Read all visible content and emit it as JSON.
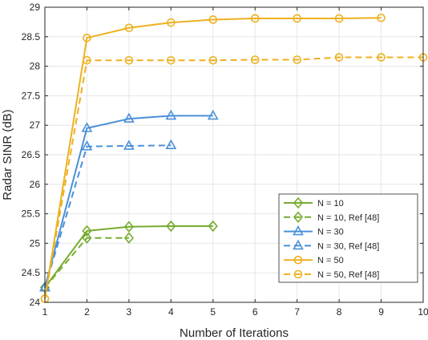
{
  "chart_data": {
    "type": "line",
    "title": "",
    "xlabel": "Number of Iterations",
    "ylabel": "Radar SINR (dB)",
    "xlim": [
      1,
      10
    ],
    "ylim": [
      24,
      29
    ],
    "x_ticks": [
      "1",
      "2",
      "3",
      "4",
      "5",
      "6",
      "7",
      "8",
      "9",
      "10"
    ],
    "y_ticks": [
      "24",
      "24.5",
      "25",
      "25.5",
      "26",
      "26.5",
      "27",
      "27.5",
      "28",
      "28.5",
      "29"
    ],
    "grid": true,
    "legend_position": "lower-right",
    "series": [
      {
        "name": "N = 10",
        "color": "#77AC30",
        "dash": "solid",
        "marker": "diamond",
        "x": [
          1,
          2,
          3,
          4,
          5
        ],
        "y": [
          24.25,
          25.21,
          25.28,
          25.29,
          25.29
        ]
      },
      {
        "name": "N = 10, Ref [48]",
        "color": "#77AC30",
        "dash": "dashed",
        "marker": "diamond",
        "x": [
          1,
          2,
          3
        ],
        "y": [
          24.25,
          25.09,
          25.09
        ]
      },
      {
        "name": "N = 30",
        "color": "#4A90D9",
        "dash": "solid",
        "marker": "triangle",
        "x": [
          1,
          2,
          3,
          4,
          5
        ],
        "y": [
          24.25,
          26.95,
          27.11,
          27.16,
          27.16
        ]
      },
      {
        "name": "N = 30, Ref [48]",
        "color": "#4A90D9",
        "dash": "dashed",
        "marker": "triangle",
        "x": [
          1,
          2,
          3,
          4
        ],
        "y": [
          24.25,
          26.64,
          26.65,
          26.66
        ]
      },
      {
        "name": "N = 50",
        "color": "#EDB120",
        "dash": "solid",
        "marker": "circle",
        "x": [
          1,
          2,
          3,
          4,
          5,
          6,
          7,
          8,
          9
        ],
        "y": [
          24.06,
          28.48,
          28.65,
          28.74,
          28.79,
          28.81,
          28.81,
          28.81,
          28.82
        ]
      },
      {
        "name": "N = 50, Ref [48]",
        "color": "#EDB120",
        "dash": "dashed",
        "marker": "circle",
        "x": [
          1,
          2,
          3,
          4,
          5,
          6,
          7,
          8,
          9,
          10
        ],
        "y": [
          24.06,
          28.1,
          28.1,
          28.1,
          28.1,
          28.11,
          28.11,
          28.15,
          28.15,
          28.15
        ]
      }
    ]
  }
}
